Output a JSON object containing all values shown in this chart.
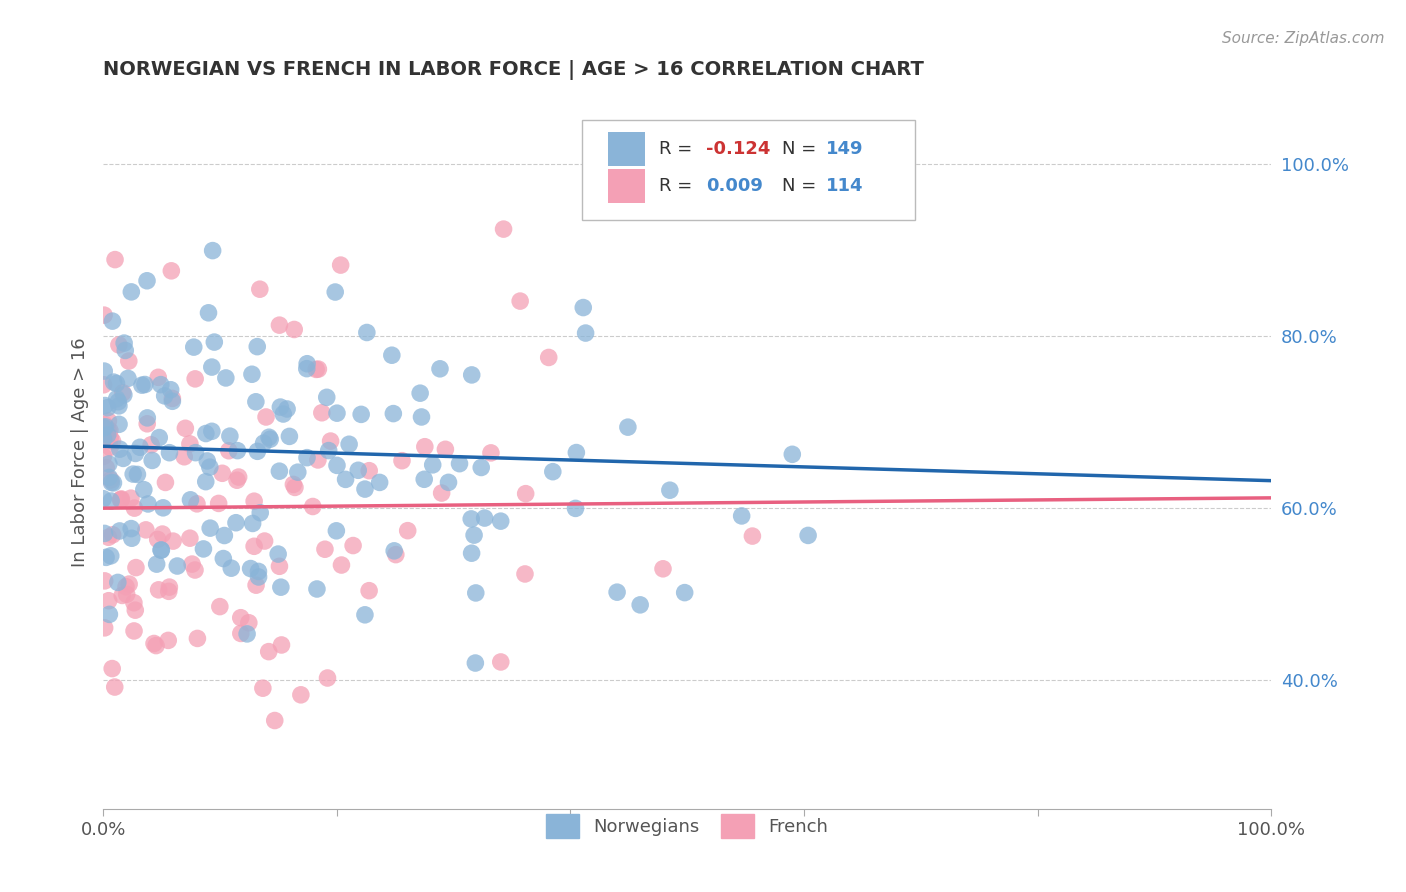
{
  "title": "NORWEGIAN VS FRENCH IN LABOR FORCE | AGE > 16 CORRELATION CHART",
  "source": "Source: ZipAtlas.com",
  "ylabel": "In Labor Force | Age > 16",
  "xlim": [
    0.0,
    1.0
  ],
  "ylim": [
    0.25,
    1.08
  ],
  "xticks": [
    0.0,
    0.2,
    0.4,
    0.6,
    0.8,
    1.0
  ],
  "xticklabels": [
    "0.0%",
    "",
    "",
    "",
    "",
    "100.0%"
  ],
  "yticks": [
    0.4,
    0.6,
    0.8,
    1.0
  ],
  "yticklabels": [
    "40.0%",
    "60.0%",
    "80.0%",
    "100.0%"
  ],
  "norwegian_R": -0.124,
  "norwegian_N": 149,
  "french_R": 0.009,
  "french_N": 114,
  "norwegian_color": "#8ab4d8",
  "french_color": "#f4a0b5",
  "norwegian_line_color": "#2166ac",
  "french_line_color": "#e86080",
  "norwegian_trend_start_y": 0.672,
  "norwegian_trend_end_y": 0.632,
  "french_trend_start_y": 0.6,
  "french_trend_end_y": 0.612,
  "background_color": "#ffffff",
  "grid_color": "#cccccc",
  "title_color": "#333333",
  "axis_label_color": "#4488cc",
  "ylabel_color": "#555555",
  "seed": 42
}
